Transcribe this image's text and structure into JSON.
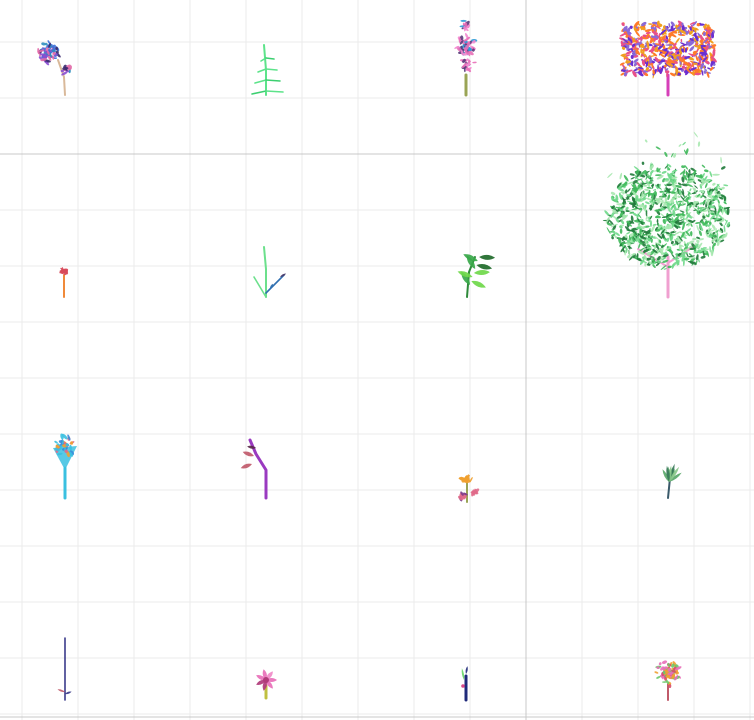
{
  "canvas": {
    "background": "#ffffff",
    "minor_grid_color": "#ebebeb",
    "major_grid_color": "#c8c8c8"
  },
  "plants": [
    {
      "id": "plant-1",
      "kind": "flower-cluster",
      "stem": "#d9b99a",
      "colors": [
        "#3a6fd8",
        "#e26aa8",
        "#3b2a6e",
        "#8a4fd1",
        "#2f8fbf"
      ]
    },
    {
      "id": "plant-2",
      "kind": "fern-sprig",
      "stem": "#5de38a",
      "colors": [
        "#5de38a",
        "#3ccf70"
      ]
    },
    {
      "id": "plant-3",
      "kind": "flower-spike",
      "stem": "#9aa455",
      "colors": [
        "#e86fb8",
        "#f28ad0",
        "#2e9bd6",
        "#5a3a7a"
      ]
    },
    {
      "id": "plant-4",
      "kind": "dense-bush",
      "stem": "#d63fb8",
      "colors": [
        "#f0a020",
        "#6a2fd1",
        "#e8508a",
        "#8a6ad8",
        "#ff7a2a"
      ]
    },
    {
      "id": "plant-5",
      "kind": "bud",
      "stem": "#f08a3a",
      "colors": [
        "#d84a5a"
      ]
    },
    {
      "id": "plant-6",
      "kind": "forked-sprig",
      "stem": "#6ce08c",
      "colors": [
        "#6ce08c",
        "#2f6fb0",
        "#4a3a6a"
      ]
    },
    {
      "id": "plant-7",
      "kind": "leafy-stem",
      "stem": "#2e8a3a",
      "colors": [
        "#6fd84a",
        "#3aa84a",
        "#1f6a2a"
      ]
    },
    {
      "id": "plant-8",
      "kind": "tree",
      "stem": "#f0a0d0",
      "colors": [
        "#3fb85a",
        "#6fd88a",
        "#1f7a3a",
        "#a8e8b0"
      ]
    },
    {
      "id": "plant-9",
      "kind": "funnel-bloom",
      "stem": "#3ac0e0",
      "colors": [
        "#f0a030",
        "#3ac0e0",
        "#e06a8a",
        "#3a8ad8"
      ]
    },
    {
      "id": "plant-10",
      "kind": "bent-stem",
      "stem": "#9a3ac0",
      "colors": [
        "#c05a6a",
        "#5a2a4a"
      ]
    },
    {
      "id": "plant-11",
      "kind": "small-flower",
      "stem": "#9aa455",
      "colors": [
        "#f0a030",
        "#e06a8a",
        "#7a3a8a"
      ]
    },
    {
      "id": "plant-12",
      "kind": "leaf-tuft",
      "stem": "#3a5a6a",
      "colors": [
        "#5aa86a",
        "#8ac88a",
        "#3a7a5a"
      ]
    },
    {
      "id": "plant-13",
      "kind": "thin-stalk",
      "stem": "#3a3a8a",
      "colors": [
        "#3a3a8a",
        "#c05a6a"
      ]
    },
    {
      "id": "plant-14",
      "kind": "rosette-bloom",
      "stem": "#c0c040",
      "colors": [
        "#e86fb8",
        "#f08ac8",
        "#b03a7a"
      ]
    },
    {
      "id": "plant-15",
      "kind": "narrow-shoot",
      "stem": "#1f2a7a",
      "colors": [
        "#1f2a7a",
        "#6ad86a",
        "#d84a8a"
      ]
    },
    {
      "id": "plant-16",
      "kind": "flower-clump",
      "stem": "#c05a6a",
      "colors": [
        "#e86fb8",
        "#f0a030",
        "#d84a6a",
        "#6ac86a"
      ]
    }
  ]
}
